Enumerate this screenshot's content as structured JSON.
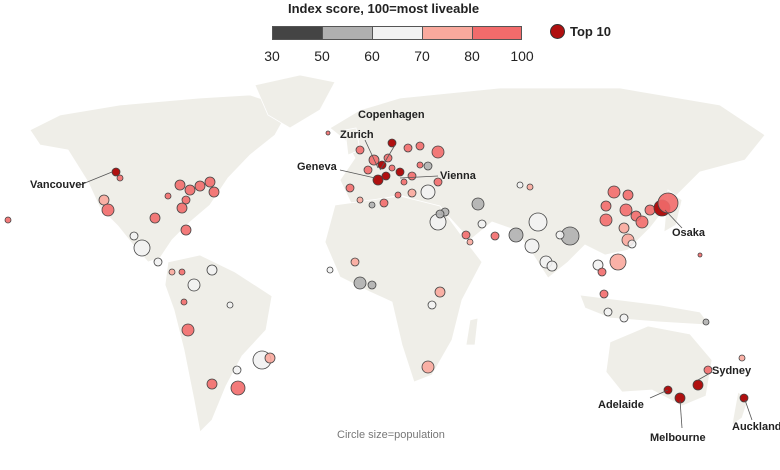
{
  "legend": {
    "title": "Index score, 100=most liveable",
    "bins": [
      {
        "range": "30-50",
        "color": "#444444"
      },
      {
        "range": "50-60",
        "color": "#b0b0b0"
      },
      {
        "range": "60-70",
        "color": "#f2f2f2"
      },
      {
        "range": "70-80",
        "color": "#f9a99d"
      },
      {
        "range": "80-100",
        "color": "#f26b6b"
      }
    ],
    "ticks": [
      "30",
      "50",
      "60",
      "70",
      "80",
      "100"
    ],
    "top10_label": "Top 10",
    "top10_color": "#b01010"
  },
  "cities": [
    "Vancouver",
    "Copenhagen",
    "Zurich",
    "Geneva",
    "Vienna",
    "Osaka",
    "Sydney",
    "Adelaide",
    "Melbourne",
    "Auckland"
  ],
  "note": "Circle size=population",
  "colors": {
    "land": "#efeee8",
    "border": "#ffffff"
  }
}
